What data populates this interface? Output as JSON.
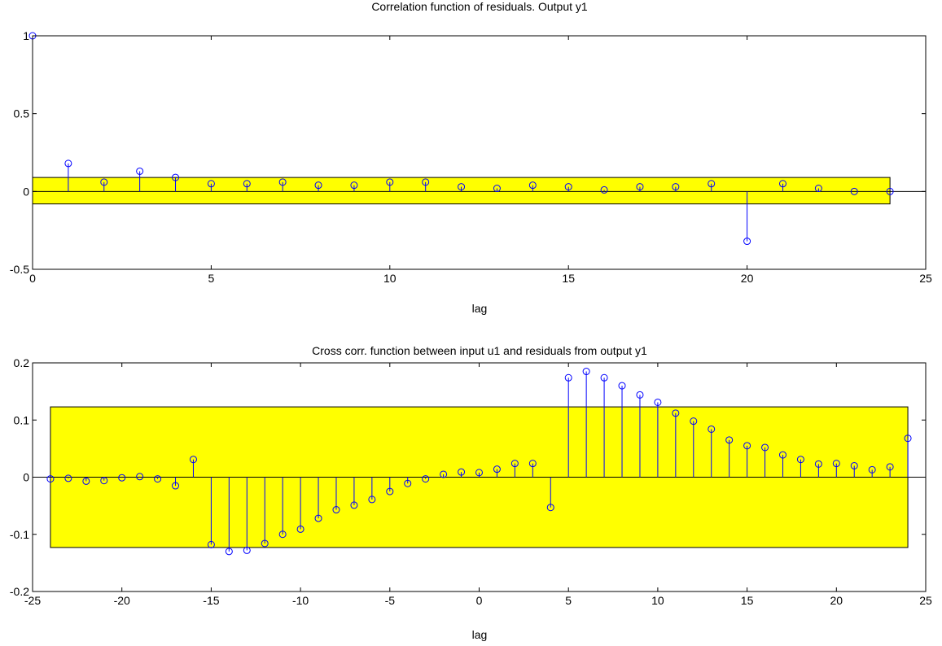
{
  "chart_data": [
    {
      "type": "stem",
      "title": "Correlation function of residuals. Output y1",
      "xlabel": "lag",
      "ylabel": "",
      "xlim": [
        0,
        25
      ],
      "ylim": [
        -0.5,
        1
      ],
      "xticks": [
        "0",
        "5",
        "10",
        "15",
        "20",
        "25"
      ],
      "yticks": [
        "-0.5",
        "0",
        "0.5",
        "1"
      ],
      "confidence_band": [
        -0.08,
        0.09
      ],
      "confidence_xrange": [
        0,
        24
      ],
      "x": [
        0,
        1,
        2,
        3,
        4,
        5,
        6,
        7,
        8,
        9,
        10,
        11,
        12,
        13,
        14,
        15,
        16,
        17,
        18,
        19,
        20,
        21,
        22,
        23,
        24
      ],
      "values": [
        1.0,
        0.18,
        0.06,
        0.13,
        0.09,
        0.05,
        0.05,
        0.06,
        0.04,
        0.04,
        0.06,
        0.06,
        0.03,
        0.02,
        0.04,
        0.03,
        0.01,
        0.03,
        0.03,
        0.05,
        -0.32,
        0.05,
        0.02,
        0.0,
        0.0
      ]
    },
    {
      "type": "stem",
      "title": "Cross corr. function between input u1 and residuals from output y1",
      "xlabel": "lag",
      "ylabel": "",
      "xlim": [
        -25,
        25
      ],
      "ylim": [
        -0.2,
        0.2
      ],
      "xticks": [
        "-25",
        "-20",
        "-15",
        "-10",
        "-5",
        "0",
        "5",
        "10",
        "15",
        "20",
        "25"
      ],
      "yticks": [
        "-0.2",
        "-0.1",
        "0",
        "0.1",
        "0.2"
      ],
      "confidence_band": [
        -0.123,
        0.123
      ],
      "confidence_xrange": [
        -24,
        24
      ],
      "x": [
        -24,
        -23,
        -22,
        -21,
        -20,
        -19,
        -18,
        -17,
        -16,
        -15,
        -14,
        -13,
        -12,
        -11,
        -10,
        -9,
        -8,
        -7,
        -6,
        -5,
        -4,
        -3,
        -2,
        -1,
        0,
        1,
        2,
        3,
        4,
        5,
        6,
        7,
        8,
        9,
        10,
        11,
        12,
        13,
        14,
        15,
        16,
        17,
        18,
        19,
        20,
        21,
        22,
        23,
        24
      ],
      "values": [
        -0.003,
        -0.002,
        -0.007,
        -0.006,
        -0.001,
        0.001,
        -0.003,
        -0.015,
        0.031,
        -0.118,
        -0.13,
        -0.128,
        -0.116,
        -0.1,
        -0.091,
        -0.072,
        -0.057,
        -0.049,
        -0.039,
        -0.025,
        -0.011,
        -0.003,
        0.005,
        0.009,
        0.008,
        0.014,
        0.024,
        0.024,
        -0.053,
        0.174,
        0.185,
        0.174,
        0.16,
        0.144,
        0.131,
        0.112,
        0.098,
        0.084,
        0.065,
        0.055,
        0.052,
        0.039,
        0.031,
        0.023,
        0.024,
        0.02,
        0.013,
        0.018,
        0.068
      ]
    }
  ],
  "colors": {
    "stem": "#0000ff",
    "band_fill": "#ffff00",
    "axes": "#000000",
    "background": "#ffffff"
  }
}
